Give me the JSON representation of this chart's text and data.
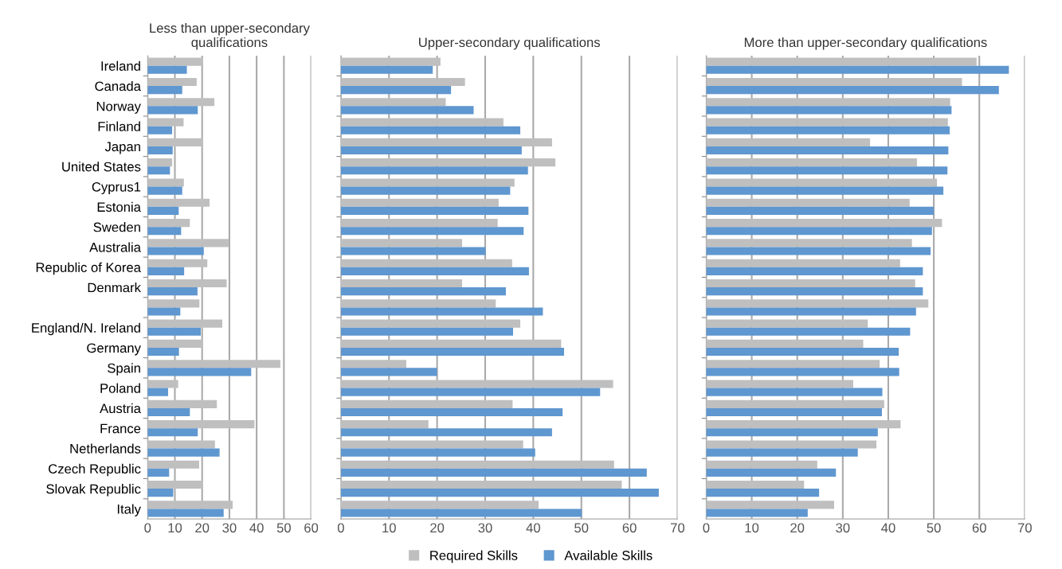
{
  "chart_data": [
    {
      "type": "bar",
      "orientation": "horizontal",
      "title": "Less than upper-secondary\nqualifications",
      "categories": [
        "Ireland",
        "Canada",
        "Norway",
        "Finland",
        "Japan",
        "United States",
        "Cyprus1",
        "Estonia",
        "Sweden",
        "Australia",
        "Republic of Korea",
        "Denmark",
        null,
        "England/N. Ireland",
        "Germany",
        "Spain",
        "Poland",
        "Austria",
        "France",
        "Netherlands",
        "Czech Republic",
        "Slovak Republic",
        "Italy"
      ],
      "xlim": [
        0,
        60
      ],
      "xticks": [
        0,
        10,
        20,
        30,
        40,
        50,
        60
      ],
      "grid": "x",
      "legend": "bottom",
      "series": [
        {
          "name": "Required Skills",
          "color": "#bfbfbf",
          "values": [
            20.4,
            18,
            24.5,
            13.2,
            20.4,
            9,
            13.3,
            22.7,
            15.5,
            29.7,
            21.9,
            29,
            19,
            27.4,
            20.2,
            48.7,
            11.2,
            25.4,
            39.2,
            24.7,
            18.9,
            20.2,
            31.2
          ]
        },
        {
          "name": "Available Skills",
          "color": "#5f97d0",
          "values": [
            14.4,
            12.7,
            18.4,
            9,
            9.2,
            8.2,
            12.7,
            11.4,
            12.3,
            20.6,
            13.4,
            18.3,
            12,
            19.5,
            11.5,
            38,
            7.5,
            15.5,
            18.4,
            26.4,
            7.9,
            9.4,
            27.9
          ]
        }
      ]
    },
    {
      "type": "bar",
      "orientation": "horizontal",
      "title": "Upper-secondary qualifications",
      "categories": [
        null,
        null,
        null,
        null,
        null,
        null,
        null,
        null,
        null,
        null,
        null,
        null,
        null,
        null,
        null,
        null,
        null,
        null,
        null,
        null,
        null,
        null,
        null
      ],
      "xlim": [
        0,
        70
      ],
      "xticks": [
        0,
        10,
        20,
        30,
        40,
        50,
        60,
        70
      ],
      "grid": "x",
      "series": [
        {
          "color": "#bfbfbf",
          "values": [
            20.7,
            25.8,
            21.8,
            33.8,
            43.9,
            44.6,
            36.1,
            32.8,
            32.6,
            25.2,
            35.6,
            25.2,
            32.2,
            37.3,
            45.8,
            13.6,
            56.6,
            35.7,
            18.2,
            37.9,
            56.8,
            58.4,
            41.1
          ]
        },
        {
          "color": "#5f97d0",
          "values": [
            19.1,
            22.9,
            27.6,
            37.3,
            37.6,
            38.9,
            35.2,
            39,
            38,
            30.1,
            39.1,
            34.3,
            42,
            35.8,
            46.4,
            20,
            53.9,
            46.1,
            43.9,
            40.4,
            63.6,
            66.1,
            50.1
          ]
        }
      ]
    },
    {
      "type": "bar",
      "orientation": "horizontal",
      "title": "More than upper-secondary qualifications",
      "categories": [
        null,
        null,
        null,
        null,
        null,
        null,
        null,
        null,
        null,
        null,
        null,
        null,
        null,
        null,
        null,
        null,
        null,
        null,
        null,
        null,
        null,
        null,
        null
      ],
      "xlim": [
        0,
        70
      ],
      "xticks": [
        0,
        10,
        20,
        30,
        40,
        50,
        60,
        70
      ],
      "grid": "x",
      "series": [
        {
          "color": "#bfbfbf",
          "values": [
            59.4,
            56.2,
            53.6,
            53.1,
            36,
            46.3,
            50.7,
            44.7,
            51.8,
            45.2,
            42.6,
            45.9,
            48.8,
            35.5,
            34.5,
            38.1,
            32.3,
            39.1,
            42.7,
            37.4,
            24.4,
            21.5,
            28.1
          ]
        },
        {
          "color": "#5f97d0",
          "values": [
            66.5,
            64.3,
            53.9,
            53.5,
            53.2,
            53,
            52.1,
            50,
            49.6,
            49.3,
            47.6,
            47.6,
            46.1,
            44.8,
            42.3,
            42.4,
            38.7,
            38.6,
            37.7,
            33.3,
            28.5,
            24.8,
            22.3
          ]
        }
      ]
    }
  ]
}
